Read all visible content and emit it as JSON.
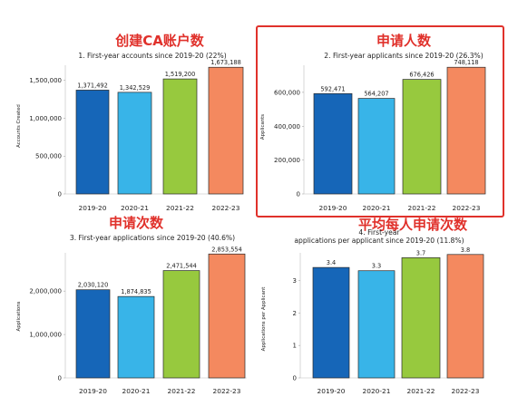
{
  "colors": {
    "bars": [
      "#1666b8",
      "#38b4e8",
      "#97c93e",
      "#f4895f"
    ],
    "annotation": "#e0312b",
    "highlight_border": "#e0312b",
    "text": "#222222"
  },
  "chart_data": [
    {
      "type": "bar",
      "annotation": "创建CA账户数",
      "title": "1. First-year accounts since 2019-20 (22%)",
      "xlabel": "",
      "ylabel": "Accounts Created",
      "categories": [
        "2019-20",
        "2020-21",
        "2021-22",
        "2022-23"
      ],
      "values": [
        1371492,
        1342529,
        1519200,
        1673188
      ],
      "value_labels": [
        "1,371,492",
        "1,342,529",
        "1,519,200",
        "1,673,188"
      ],
      "ylim": [
        0,
        1700000
      ],
      "yticks": [
        0,
        500000,
        1000000,
        1500000
      ],
      "ytick_labels": [
        "0",
        "500,000",
        "1,000,000",
        "1,500,000"
      ],
      "highlighted": false
    },
    {
      "type": "bar",
      "annotation": "申请人数",
      "title": "2. First-year applicants since 2019-20 (26.3%)",
      "xlabel": "",
      "ylabel": "Applicants",
      "categories": [
        "2019-20",
        "2020-21",
        "2021-22",
        "2022-23"
      ],
      "values": [
        592471,
        564207,
        676426,
        748118
      ],
      "value_labels": [
        "592,471",
        "564,207",
        "676,426",
        "748,118"
      ],
      "ylim": [
        0,
        760000
      ],
      "yticks": [
        0,
        200000,
        400000,
        600000
      ],
      "ytick_labels": [
        "0",
        "200,000",
        "400,000",
        "600,000"
      ],
      "highlighted": true
    },
    {
      "type": "bar",
      "annotation": "申请次数",
      "title": "3. First-year applications since 2019-20 (40.6%)",
      "xlabel": "",
      "ylabel": "Applications",
      "categories": [
        "2019-20",
        "2020-21",
        "2021-22",
        "2022-23"
      ],
      "values": [
        2030120,
        1874835,
        2471544,
        2853554
      ],
      "value_labels": [
        "2,030,120",
        "1,874,835",
        "2,471,544",
        "2,853,554"
      ],
      "ylim": [
        0,
        2880000
      ],
      "yticks": [
        0,
        1000000,
        2000000
      ],
      "ytick_labels": [
        "0",
        "1,000,000",
        "2,000,000"
      ],
      "highlighted": false
    },
    {
      "type": "bar",
      "annotation": "平均每人申请次数",
      "title": "4. First-year applications per applicant since 2019-20 (11.8%)",
      "xlabel": "",
      "ylabel": "Applications per Applicant",
      "categories": [
        "2019-20",
        "2020-21",
        "2021-22",
        "2022-23"
      ],
      "values": [
        3.4,
        3.3,
        3.7,
        3.8
      ],
      "value_labels": [
        "3.4",
        "3.3",
        "3.7",
        "3.8"
      ],
      "ylim": [
        0,
        3.85
      ],
      "yticks": [
        0,
        1,
        2,
        3
      ],
      "ytick_labels": [
        "0",
        "1",
        "2",
        "3"
      ],
      "highlighted": false
    }
  ]
}
